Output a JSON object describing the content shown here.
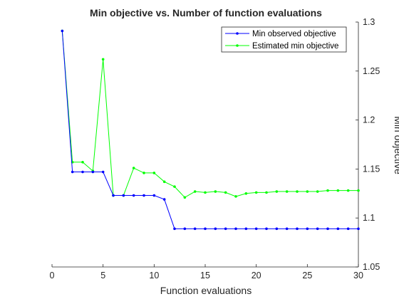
{
  "chart_data": {
    "type": "line",
    "title": "Min objective vs. Number of function evaluations",
    "xlabel": "Function evaluations",
    "ylabel": "Min objective",
    "xlim": [
      0,
      30
    ],
    "ylim": [
      1.05,
      1.3
    ],
    "x_ticks": [
      "0",
      "5",
      "10",
      "15",
      "20",
      "25",
      "30"
    ],
    "y_ticks": [
      "1.05",
      "1.1",
      "1.15",
      "1.2",
      "1.25",
      "1.3"
    ],
    "y_axis_location": "right",
    "grid": false,
    "legend_location": "top-right",
    "x": [
      1,
      2,
      3,
      4,
      5,
      6,
      7,
      8,
      9,
      10,
      11,
      12,
      13,
      14,
      15,
      16,
      17,
      18,
      19,
      20,
      21,
      22,
      23,
      24,
      25,
      26,
      27,
      28,
      29,
      30
    ],
    "series": [
      {
        "name": "Min observed objective",
        "color": "#0000ff",
        "values": [
          1.291,
          1.147,
          1.147,
          1.147,
          1.147,
          1.123,
          1.123,
          1.123,
          1.123,
          1.123,
          1.119,
          1.089,
          1.089,
          1.089,
          1.089,
          1.089,
          1.089,
          1.089,
          1.089,
          1.089,
          1.089,
          1.089,
          1.089,
          1.089,
          1.089,
          1.089,
          1.089,
          1.089,
          1.089,
          1.089
        ]
      },
      {
        "name": "Estimated min objective",
        "color": "#00ff00",
        "values": [
          1.291,
          1.157,
          1.157,
          1.148,
          1.262,
          1.123,
          1.123,
          1.151,
          1.146,
          1.146,
          1.137,
          1.132,
          1.121,
          1.127,
          1.126,
          1.127,
          1.126,
          1.122,
          1.125,
          1.126,
          1.126,
          1.127,
          1.127,
          1.127,
          1.127,
          1.127,
          1.128,
          1.128,
          1.128,
          1.128
        ]
      }
    ]
  }
}
